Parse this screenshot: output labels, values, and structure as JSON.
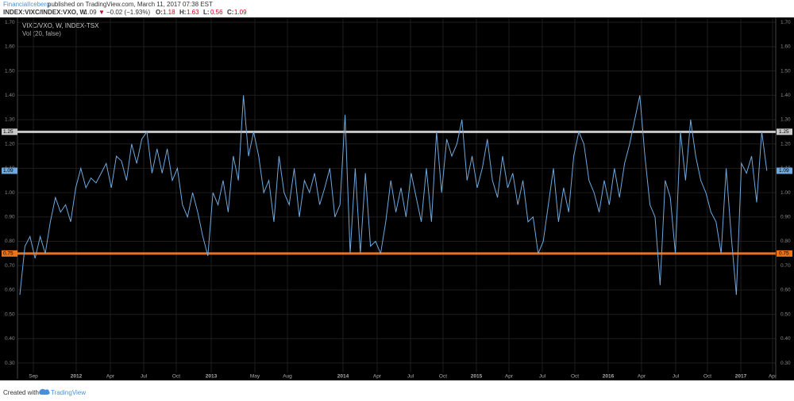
{
  "header": {
    "author": "FinancialIceberg",
    "published": "published on TradingView.com, March 11, 2017 07:38 EST",
    "symbol": "INDEX:VIXC/INDEX:VXO, W",
    "last": "1.09",
    "arrow": "▼",
    "change": "−0.02 (−1.93%)",
    "ohlc": [
      {
        "k": "O:",
        "v": "1.18"
      },
      {
        "k": "H:",
        "v": "1.63"
      },
      {
        "k": "L:",
        "v": "0.56"
      },
      {
        "k": "C:",
        "v": "1.09"
      }
    ]
  },
  "chart_data": {
    "type": "line",
    "title": "VIXC/VXO, W, INDEX-TSX",
    "subtitle": "Vol (20, false)",
    "series": [
      {
        "name": "VIXC/VXO",
        "color": "#6fa8dc",
        "values": [
          0.58,
          0.78,
          0.82,
          0.73,
          0.82,
          0.75,
          0.88,
          0.98,
          0.92,
          0.95,
          0.88,
          1.02,
          1.1,
          1.02,
          1.06,
          1.04,
          1.08,
          1.12,
          1.02,
          1.15,
          1.13,
          1.05,
          1.2,
          1.12,
          1.22,
          1.25,
          1.08,
          1.18,
          1.08,
          1.18,
          1.05,
          1.1,
          0.95,
          0.9,
          1.0,
          0.92,
          0.82,
          0.74,
          1.0,
          0.95,
          1.05,
          0.92,
          1.15,
          1.05,
          1.4,
          1.15,
          1.25,
          1.15,
          1.0,
          1.05,
          0.88,
          1.15,
          1.0,
          0.95,
          1.1,
          0.9,
          1.05,
          1.0,
          1.08,
          0.95,
          1.02,
          1.1,
          0.9,
          0.95,
          1.32,
          0.75,
          1.1,
          0.75,
          1.08,
          0.78,
          0.8,
          0.75,
          0.88,
          1.05,
          0.92,
          1.02,
          0.9,
          1.08,
          0.98,
          0.88,
          1.1,
          0.88,
          1.25,
          1.0,
          1.22,
          1.15,
          1.2,
          1.3,
          1.05,
          1.15,
          1.02,
          1.1,
          1.22,
          1.05,
          0.98,
          1.15,
          1.02,
          1.08,
          0.95,
          1.05,
          0.88,
          0.9,
          0.75,
          0.8,
          0.95,
          1.1,
          0.88,
          1.02,
          0.92,
          1.15,
          1.25,
          1.2,
          1.05,
          1.0,
          0.92,
          1.05,
          0.95,
          1.1,
          0.98,
          1.12,
          1.2,
          1.3,
          1.4,
          1.15,
          0.95,
          0.9,
          0.62,
          1.05,
          0.98,
          0.75,
          1.25,
          1.05,
          1.3,
          1.15,
          1.05,
          1.0,
          0.92,
          0.88,
          0.75,
          1.1,
          0.82,
          0.58,
          1.12,
          1.08,
          1.15,
          0.96,
          1.25,
          1.09
        ]
      }
    ],
    "hlines": [
      {
        "value": 1.25,
        "color": "#c8c8c8"
      },
      {
        "value": 0.75,
        "color": "#e8741c"
      }
    ],
    "xlim": [
      -0.47,
      148.75
    ],
    "xticks": [
      {
        "value": 2.66,
        "label": "Sep"
      },
      {
        "value": 11.09,
        "label": "2012"
      },
      {
        "value": 17.81,
        "label": "Apr"
      },
      {
        "value": 24.38,
        "label": "Jul"
      },
      {
        "value": 30.78,
        "label": "Oct"
      },
      {
        "value": 37.66,
        "label": "2013"
      },
      {
        "value": 46.25,
        "label": "May"
      },
      {
        "value": 52.66,
        "label": "Aug"
      },
      {
        "value": 63.59,
        "label": "2014"
      },
      {
        "value": 70.31,
        "label": "Apr"
      },
      {
        "value": 76.88,
        "label": "Jul"
      },
      {
        "value": 83.28,
        "label": "Oct"
      },
      {
        "value": 89.84,
        "label": "2015"
      },
      {
        "value": 96.25,
        "label": "Apr"
      },
      {
        "value": 102.81,
        "label": "Jul"
      },
      {
        "value": 109.22,
        "label": "Oct"
      },
      {
        "value": 115.78,
        "label": "2016"
      },
      {
        "value": 122.34,
        "label": "Apr"
      },
      {
        "value": 129.06,
        "label": "Jul"
      },
      {
        "value": 135.31,
        "label": "Oct"
      },
      {
        "value": 141.88,
        "label": "2017"
      },
      {
        "value": 148.13,
        "label": "Apr"
      }
    ],
    "ylim": [
      0.235,
      1.72
    ],
    "yticks": [
      {
        "value": 0.3,
        "label": "0.30"
      },
      {
        "value": 0.4,
        "label": "0.40"
      },
      {
        "value": 0.5,
        "label": "0.50"
      },
      {
        "value": 0.6,
        "label": "0.60"
      },
      {
        "value": 0.7,
        "label": "0.70"
      },
      {
        "value": 0.8,
        "label": "0.80"
      },
      {
        "value": 0.9,
        "label": "0.90"
      },
      {
        "value": 1.0,
        "label": "1.00"
      },
      {
        "value": 1.1,
        "label": "1.10"
      },
      {
        "value": 1.2,
        "label": "1.20"
      },
      {
        "value": 1.3,
        "label": "1.30"
      },
      {
        "value": 1.4,
        "label": "1.40"
      },
      {
        "value": 1.5,
        "label": "1.50"
      },
      {
        "value": 1.6,
        "label": "1.60"
      },
      {
        "value": 1.7,
        "label": "1.70"
      }
    ],
    "grid": true
  },
  "footer": {
    "created": "Created with",
    "brand": "TradingView"
  }
}
